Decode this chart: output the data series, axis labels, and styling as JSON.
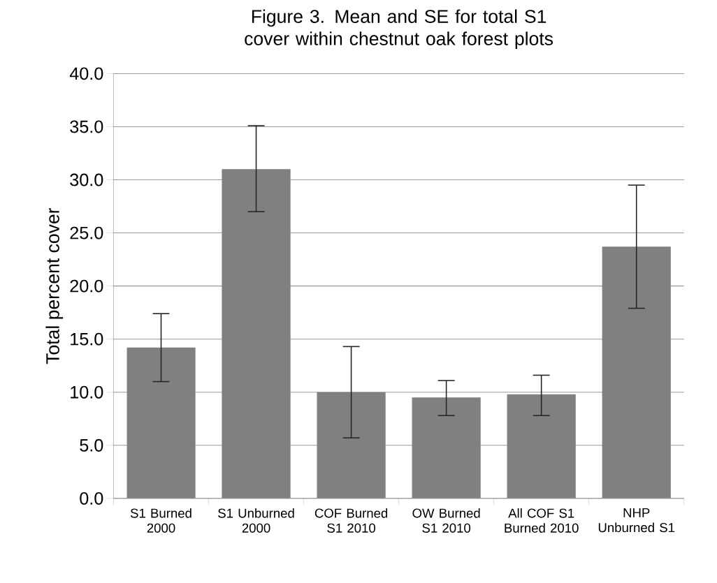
{
  "chart_data": {
    "type": "bar",
    "title": "Figure 3. Mean and SE for total S1 cover within chestnut oak forest plots",
    "ylabel": "Total percent cover",
    "categories": [
      "S1 Burned 2000",
      "S1 Unburned 2000",
      "COF Burned S1 2010",
      "OW Burned S1 2010",
      "All COF S1 Burned 2010",
      "NHP Unburned S1"
    ],
    "values": [
      14.2,
      31.0,
      10.0,
      9.5,
      9.8,
      23.7
    ],
    "errors": [
      [
        11.0,
        17.4
      ],
      [
        27.0,
        35.1
      ],
      [
        5.7,
        14.3
      ],
      [
        7.8,
        11.1
      ],
      [
        7.8,
        11.6
      ],
      [
        17.9,
        29.5
      ]
    ],
    "color": "#808080",
    "ylim": [
      0,
      40
    ],
    "yticks": [
      {
        "value": 0,
        "label": "0.0"
      },
      {
        "value": 5,
        "label": "5.0"
      },
      {
        "value": 10,
        "label": "10.0"
      },
      {
        "value": 15,
        "label": "15.0"
      },
      {
        "value": 20,
        "label": "20.0"
      },
      {
        "value": 25,
        "label": "25.0"
      },
      {
        "value": 30,
        "label": "30.0"
      },
      {
        "value": 35,
        "label": "35.0"
      },
      {
        "value": 40,
        "label": "40.0"
      }
    ],
    "grid": "y"
  }
}
